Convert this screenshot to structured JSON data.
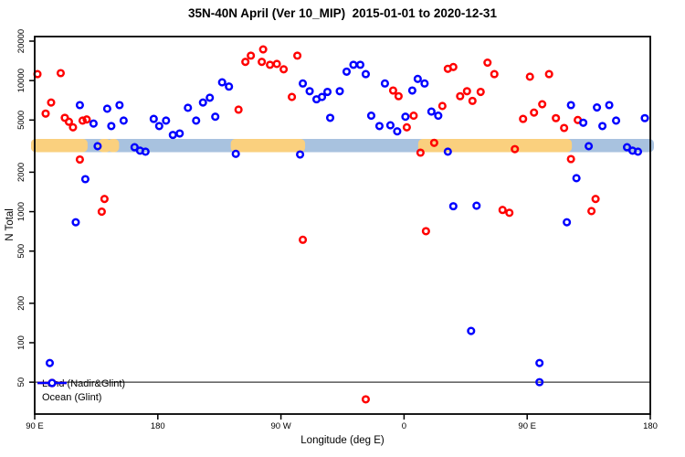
{
  "chart_data": {
    "type": "scatter",
    "title": "35N-40N April (Ver 10_MIP)  2015-01-01 to 2020-12-31",
    "xlabel": "Longitude (deg E)",
    "ylabel": "N Total",
    "x_axis": {
      "min": 90,
      "max": 540,
      "ticks": [
        {
          "v": 90,
          "label": "90 E"
        },
        {
          "v": 180,
          "label": "180"
        },
        {
          "v": 270,
          "label": "90 W"
        },
        {
          "v": 360,
          "label": "0"
        },
        {
          "v": 450,
          "label": "90 E"
        },
        {
          "v": 540,
          "label": "180"
        }
      ]
    },
    "y_axis": {
      "scale": "log",
      "min": 29,
      "max": 21700,
      "ticks": [
        {
          "v": 20000,
          "label": "20000"
        },
        {
          "v": 10000,
          "label": "10000"
        },
        {
          "v": 5000,
          "label": "5000"
        },
        {
          "v": 2000,
          "label": "2000"
        },
        {
          "v": 1000,
          "label": "1000"
        },
        {
          "v": 500,
          "label": "500"
        },
        {
          "v": 200,
          "label": "200"
        },
        {
          "v": 100,
          "label": "100"
        },
        {
          "v": 50,
          "label": "50"
        }
      ]
    },
    "grid": false,
    "reference_line": {
      "y": 50,
      "color": "#3a3a3a"
    },
    "expected_band": {
      "n_high": 3590,
      "n_low": 2845,
      "segments": [
        {
          "series": "ocean",
          "lon_from": 90,
          "lon_to": 540
        },
        {
          "series": "land",
          "lon_from": 90,
          "lon_to": 126
        },
        {
          "series": "land",
          "lon_from": 236,
          "lon_to": 285
        },
        {
          "series": "land",
          "lon_from": 373,
          "lon_to": 480
        },
        {
          "series": "land",
          "lon_from": 139,
          "lon_to": 143
        },
        {
          "series": "land",
          "lon_from": 146,
          "lon_to": 149
        }
      ]
    },
    "legend": [
      {
        "series": "land",
        "label": "Land (Nadir&Glint)"
      },
      {
        "series": "ocean",
        "label": "Ocean (Glint)"
      }
    ],
    "colors": {
      "land": "#ff0000",
      "ocean": "#0000ff",
      "band_land": "#fad07e",
      "band_ocean": "#a8c2df"
    },
    "series": [
      {
        "name": "land",
        "points": [
          [
            92,
            11200
          ],
          [
            109,
            11400
          ],
          [
            102,
            6800
          ],
          [
            98,
            5600
          ],
          [
            112,
            5200
          ],
          [
            115,
            4850
          ],
          [
            118,
            4400
          ],
          [
            125,
            4950
          ],
          [
            128,
            5050
          ],
          [
            123,
            2500
          ],
          [
            141,
            1250
          ],
          [
            139,
            1000
          ],
          [
            239,
            6000
          ],
          [
            244,
            13900
          ],
          [
            248,
            15500
          ],
          [
            257,
            17300
          ],
          [
            256,
            13900
          ],
          [
            262,
            13200
          ],
          [
            267,
            13400
          ],
          [
            272,
            12200
          ],
          [
            282,
            15500
          ],
          [
            278,
            7500
          ],
          [
            352,
            8400
          ],
          [
            356,
            7600
          ],
          [
            367,
            5400
          ],
          [
            362,
            4400
          ],
          [
            388,
            6400
          ],
          [
            392,
            12300
          ],
          [
            396,
            12700
          ],
          [
            401,
            7600
          ],
          [
            406,
            8300
          ],
          [
            410,
            7000
          ],
          [
            416,
            8200
          ],
          [
            421,
            13700
          ],
          [
            426,
            11200
          ],
          [
            382,
            3350
          ],
          [
            372,
            2820
          ],
          [
            286,
            610
          ],
          [
            376,
            710
          ],
          [
            452,
            10700
          ],
          [
            466,
            11200
          ],
          [
            461,
            6600
          ],
          [
            455,
            5700
          ],
          [
            447,
            5100
          ],
          [
            471,
            5170
          ],
          [
            477,
            4350
          ],
          [
            487,
            5000
          ],
          [
            441,
            3000
          ],
          [
            482,
            2520
          ],
          [
            432,
            1030
          ],
          [
            437,
            980
          ],
          [
            500,
            1250
          ],
          [
            497,
            1010
          ],
          [
            332,
            37
          ]
        ]
      },
      {
        "name": "ocean",
        "points": [
          [
            123,
            6500
          ],
          [
            133,
            4700
          ],
          [
            143,
            6100
          ],
          [
            152,
            6500
          ],
          [
            146,
            4500
          ],
          [
            155,
            4950
          ],
          [
            177,
            5100
          ],
          [
            181,
            4500
          ],
          [
            186,
            4950
          ],
          [
            191,
            3850
          ],
          [
            196,
            3950
          ],
          [
            202,
            6200
          ],
          [
            208,
            4950
          ],
          [
            213,
            6800
          ],
          [
            218,
            7400
          ],
          [
            222,
            5300
          ],
          [
            227,
            9700
          ],
          [
            232,
            9000
          ],
          [
            286,
            9500
          ],
          [
            291,
            8300
          ],
          [
            296,
            7200
          ],
          [
            300,
            7500
          ],
          [
            304,
            8200
          ],
          [
            306,
            5200
          ],
          [
            313,
            8300
          ],
          [
            318,
            11700
          ],
          [
            323,
            13200
          ],
          [
            328,
            13200
          ],
          [
            332,
            11200
          ],
          [
            346,
            9500
          ],
          [
            366,
            8400
          ],
          [
            370,
            10300
          ],
          [
            375,
            9500
          ],
          [
            336,
            5400
          ],
          [
            342,
            4500
          ],
          [
            350,
            4560
          ],
          [
            355,
            4100
          ],
          [
            361,
            5300
          ],
          [
            380,
            5800
          ],
          [
            385,
            5400
          ],
          [
            482,
            6500
          ],
          [
            491,
            4770
          ],
          [
            501,
            6240
          ],
          [
            510,
            6500
          ],
          [
            505,
            4500
          ],
          [
            515,
            4950
          ],
          [
            536,
            5170
          ],
          [
            495,
            3160
          ],
          [
            523,
            3100
          ],
          [
            527,
            2920
          ],
          [
            531,
            2870
          ],
          [
            136,
            3160
          ],
          [
            163,
            3100
          ],
          [
            167,
            2920
          ],
          [
            171,
            2870
          ],
          [
            127,
            1770
          ],
          [
            120,
            830
          ],
          [
            237,
            2760
          ],
          [
            284,
            2730
          ],
          [
            392,
            2870
          ],
          [
            396,
            1100
          ],
          [
            413,
            1110
          ],
          [
            486,
            1800
          ],
          [
            479,
            830
          ],
          [
            101,
            70
          ],
          [
            409,
            123
          ],
          [
            459,
            70
          ],
          [
            459,
            50
          ]
        ]
      }
    ]
  }
}
